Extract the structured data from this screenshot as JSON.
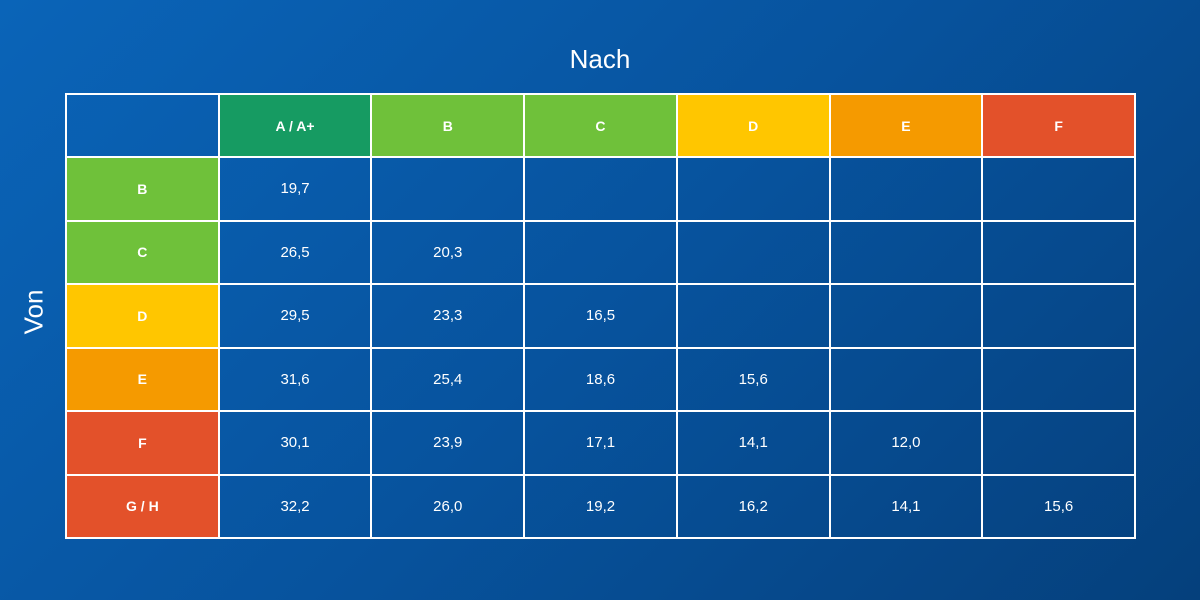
{
  "title": "Nach",
  "side_label": "Von",
  "table": {
    "columns": [
      {
        "label": "A / A+",
        "color": "#169b62"
      },
      {
        "label": "B",
        "color": "#6fc13a"
      },
      {
        "label": "C",
        "color": "#6fc13a"
      },
      {
        "label": "D",
        "color": "#ffc600"
      },
      {
        "label": "E",
        "color": "#f59a00"
      },
      {
        "label": "F",
        "color": "#e3512a"
      }
    ],
    "rows": [
      {
        "label": "B",
        "color": "#6fc13a",
        "values": [
          "19,7"
        ]
      },
      {
        "label": "C",
        "color": "#6fc13a",
        "values": [
          "26,5",
          "20,3"
        ]
      },
      {
        "label": "D",
        "color": "#ffc600",
        "values": [
          "29,5",
          "23,3",
          "16,5"
        ]
      },
      {
        "label": "E",
        "color": "#f59a00",
        "values": [
          "31,6",
          "25,4",
          "18,6",
          "15,6"
        ]
      },
      {
        "label": "F",
        "color": "#e3512a",
        "values": [
          "30,1",
          "23,9",
          "17,1",
          "14,1",
          "12,0"
        ]
      },
      {
        "label": "G / H",
        "color": "#e3512a",
        "values": [
          "32,2",
          "26,0",
          "19,2",
          "16,2",
          "14,1",
          "15,6"
        ]
      }
    ]
  }
}
